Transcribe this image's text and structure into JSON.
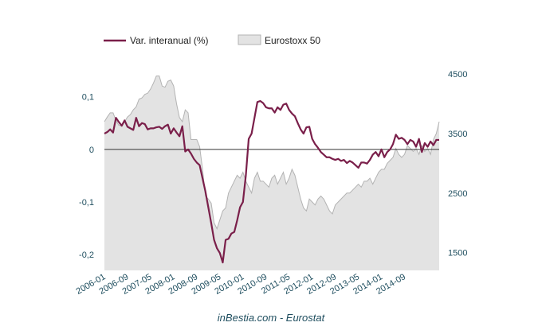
{
  "chart_data": {
    "type": "line",
    "source_text": "inBestia.com - Eurostat",
    "grid": false,
    "legend_position": "top",
    "colors": {
      "line": "#7a1f4a",
      "area_fill": "#e3e3e3",
      "area_stroke": "#b3b3b3",
      "axis_text": "#1f4e5f",
      "zero_line": "#333333"
    },
    "x_tick_labels": [
      "2006-01",
      "2006-09",
      "2007-05",
      "2008-01",
      "2008-09",
      "2009-05",
      "2010-01",
      "2010-09",
      "2011-05",
      "2012-01",
      "2012-09",
      "2013-05",
      "2014-01",
      "2014-09"
    ],
    "y_left": {
      "ticks": [
        0.1,
        0,
        -0.1,
        -0.2
      ],
      "tick_labels": [
        "0,1",
        "0",
        "-0,1",
        "-0,2"
      ],
      "range": [
        -0.23,
        0.16
      ]
    },
    "y_right": {
      "ticks": [
        4500,
        3500,
        2500,
        1500
      ],
      "tick_labels": [
        "4500",
        "3500",
        "2500",
        "1500"
      ],
      "range": [
        1200,
        4650
      ]
    },
    "series": [
      {
        "name": "Var. interanual (%)",
        "axis": "left",
        "kind": "line",
        "values": [
          0.03,
          0.033,
          0.038,
          0.032,
          0.06,
          0.052,
          0.045,
          0.055,
          0.043,
          0.04,
          0.037,
          0.06,
          0.044,
          0.05,
          0.048,
          0.038,
          0.04,
          0.04,
          0.042,
          0.043,
          0.039,
          0.044,
          0.047,
          0.03,
          0.04,
          0.032,
          0.025,
          0.044,
          -0.004,
          0.0,
          -0.008,
          -0.018,
          -0.025,
          -0.03,
          -0.055,
          -0.08,
          -0.11,
          -0.14,
          -0.172,
          -0.188,
          -0.197,
          -0.215,
          -0.172,
          -0.17,
          -0.16,
          -0.157,
          -0.135,
          -0.11,
          -0.1,
          -0.05,
          0.02,
          0.03,
          0.06,
          0.09,
          0.092,
          0.088,
          0.08,
          0.078,
          0.078,
          0.07,
          0.08,
          0.075,
          0.085,
          0.087,
          0.075,
          0.068,
          0.063,
          0.05,
          0.038,
          0.03,
          0.042,
          0.043,
          0.02,
          0.01,
          0.003,
          -0.005,
          -0.01,
          -0.015,
          -0.015,
          -0.018,
          -0.02,
          -0.018,
          -0.022,
          -0.02,
          -0.026,
          -0.022,
          -0.025,
          -0.03,
          -0.035,
          -0.025,
          -0.025,
          -0.027,
          -0.02,
          -0.01,
          -0.005,
          -0.013,
          0.0,
          -0.015,
          -0.005,
          0.0,
          0.01,
          0.028,
          0.02,
          0.022,
          0.018,
          0.01,
          0.018,
          0.015,
          0.005,
          0.02,
          -0.005,
          0.012,
          0.005,
          0.015,
          0.008,
          0.018,
          0.018
        ]
      },
      {
        "name": "Eurostoxx 50",
        "axis": "right",
        "kind": "area",
        "values": [
          3700,
          3780,
          3850,
          3850,
          3720,
          3640,
          3630,
          3700,
          3780,
          3820,
          3900,
          3950,
          4080,
          4100,
          4160,
          4180,
          4250,
          4350,
          4470,
          4470,
          4300,
          4280,
          4380,
          4400,
          4300,
          4000,
          3770,
          3700,
          3900,
          3850,
          3400,
          3400,
          3400,
          3280,
          2900,
          2450,
          2400,
          2330,
          2000,
          1900,
          2050,
          2200,
          2250,
          2500,
          2600,
          2700,
          2800,
          2750,
          2850,
          2700,
          2600,
          2500,
          2750,
          2850,
          2700,
          2700,
          2650,
          2600,
          2750,
          2800,
          2650,
          2750,
          2850,
          2650,
          2750,
          2900,
          2800,
          2600,
          2400,
          2250,
          2200,
          2400,
          2350,
          2300,
          2400,
          2450,
          2400,
          2300,
          2200,
          2150,
          2300,
          2350,
          2400,
          2450,
          2500,
          2500,
          2550,
          2600,
          2650,
          2600,
          2700,
          2700,
          2750,
          2650,
          2750,
          2850,
          2900,
          2900,
          3000,
          3050,
          3100,
          3250,
          3150,
          3100,
          3150,
          3300,
          3250,
          3200,
          3250,
          3150,
          3300,
          3200,
          3250,
          3150,
          3400,
          3500,
          3700
        ]
      }
    ]
  }
}
